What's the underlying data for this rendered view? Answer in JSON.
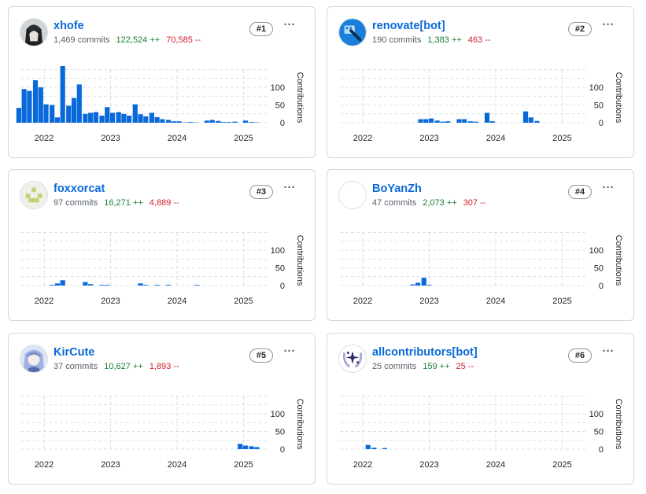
{
  "colors": {
    "bar": "#0969da",
    "grid": "#d0d7de",
    "add": "#1a7f37",
    "del": "#cf222e",
    "link": "#0969da"
  },
  "contributors": [
    {
      "rank": "#1",
      "name": "xhofe",
      "commits": "1,469 commits",
      "additions": "122,524 ++",
      "deletions": "70,585 --",
      "avatar_icon": "dark-character-avatar-icon"
    },
    {
      "rank": "#2",
      "name": "renovate[bot]",
      "commits": "190 commits",
      "additions": "1,383 ++",
      "deletions": "463 --",
      "avatar_icon": "renovate-bot-icon"
    },
    {
      "rank": "#3",
      "name": "foxxorcat",
      "commits": "97 commits",
      "additions": "16,271 ++",
      "deletions": "4,889 --",
      "avatar_icon": "identicon-avatar-icon"
    },
    {
      "rank": "#4",
      "name": "BoYanZh",
      "commits": "47 commits",
      "additions": "2,073 ++",
      "deletions": "307 --",
      "avatar_icon": "blank-avatar-icon"
    },
    {
      "rank": "#5",
      "name": "KirCute",
      "commits": "37 commits",
      "additions": "10,627 ++",
      "deletions": "1,893 --",
      "avatar_icon": "anime-character-avatar-icon"
    },
    {
      "rank": "#6",
      "name": "allcontributors[bot]",
      "commits": "25 commits",
      "additions": "159 ++",
      "deletions": "25 --",
      "avatar_icon": "allcontributors-bot-icon"
    }
  ],
  "chart_data": [
    {
      "type": "bar",
      "title": "xhofe",
      "ylabel": "Contributions",
      "ylim": [
        0,
        150
      ],
      "yticks": [
        0,
        50,
        100
      ],
      "xticks": [
        "2022",
        "2023",
        "2024",
        "2025"
      ],
      "x": [
        2021.62,
        2021.7,
        2021.78,
        2021.87,
        2021.95,
        2022.03,
        2022.12,
        2022.2,
        2022.28,
        2022.37,
        2022.45,
        2022.53,
        2022.62,
        2022.7,
        2022.78,
        2022.87,
        2022.95,
        2023.03,
        2023.12,
        2023.2,
        2023.28,
        2023.37,
        2023.45,
        2023.53,
        2023.62,
        2023.7,
        2023.78,
        2023.87,
        2023.95,
        2024.03,
        2024.12,
        2024.2,
        2024.28,
        2024.45,
        2024.53,
        2024.62,
        2024.7,
        2024.78,
        2024.87,
        2025.03,
        2025.12,
        2025.2
      ],
      "values": [
        42,
        95,
        90,
        120,
        100,
        52,
        50,
        15,
        160,
        48,
        70,
        108,
        25,
        28,
        30,
        20,
        44,
        28,
        30,
        25,
        20,
        52,
        24,
        18,
        28,
        16,
        10,
        8,
        4,
        4,
        1,
        2,
        1,
        6,
        8,
        5,
        2,
        2,
        3,
        6,
        2,
        1
      ]
    },
    {
      "type": "bar",
      "title": "renovate[bot]",
      "ylabel": "Contributions",
      "ylim": [
        0,
        150
      ],
      "yticks": [
        0,
        50,
        100
      ],
      "xticks": [
        "2022",
        "2023",
        "2024",
        "2025"
      ],
      "x": [
        2022.87,
        2022.95,
        2023.03,
        2023.12,
        2023.2,
        2023.28,
        2023.45,
        2023.53,
        2023.62,
        2023.7,
        2023.87,
        2023.95,
        2024.45,
        2024.53,
        2024.62
      ],
      "values": [
        10,
        10,
        12,
        6,
        3,
        4,
        10,
        10,
        4,
        3,
        28,
        4,
        32,
        15,
        5
      ]
    },
    {
      "type": "bar",
      "title": "foxxorcat",
      "ylabel": "Contributions",
      "ylim": [
        0,
        150
      ],
      "yticks": [
        0,
        50,
        100
      ],
      "xticks": [
        "2022",
        "2023",
        "2024",
        "2025"
      ],
      "x": [
        2022.12,
        2022.2,
        2022.28,
        2022.62,
        2022.7,
        2022.87,
        2022.95,
        2023.45,
        2023.53,
        2023.7,
        2023.87,
        2024.3
      ],
      "values": [
        2,
        6,
        15,
        10,
        4,
        2,
        2,
        6,
        2,
        2,
        2,
        2
      ]
    },
    {
      "type": "bar",
      "title": "BoYanZh",
      "ylabel": "Contributions",
      "ylim": [
        0,
        150
      ],
      "yticks": [
        0,
        50,
        100
      ],
      "xticks": [
        "2022",
        "2023",
        "2024",
        "2025"
      ],
      "x": [
        2022.75,
        2022.83,
        2022.92,
        2023.0
      ],
      "values": [
        3,
        8,
        22,
        2
      ]
    },
    {
      "type": "bar",
      "title": "KirCute",
      "ylabel": "Contributions",
      "ylim": [
        0,
        150
      ],
      "yticks": [
        0,
        50,
        100
      ],
      "xticks": [
        "2022",
        "2023",
        "2024",
        "2025"
      ],
      "x": [
        2024.95,
        2025.03,
        2025.12,
        2025.2
      ],
      "values": [
        15,
        10,
        8,
        6
      ]
    },
    {
      "type": "bar",
      "title": "allcontributors[bot]",
      "ylabel": "Contributions",
      "ylim": [
        0,
        150
      ],
      "yticks": [
        0,
        50,
        100
      ],
      "xticks": [
        "2022",
        "2023",
        "2024",
        "2025"
      ],
      "x": [
        2022.08,
        2022.17,
        2022.33
      ],
      "values": [
        12,
        4,
        3
      ]
    }
  ]
}
